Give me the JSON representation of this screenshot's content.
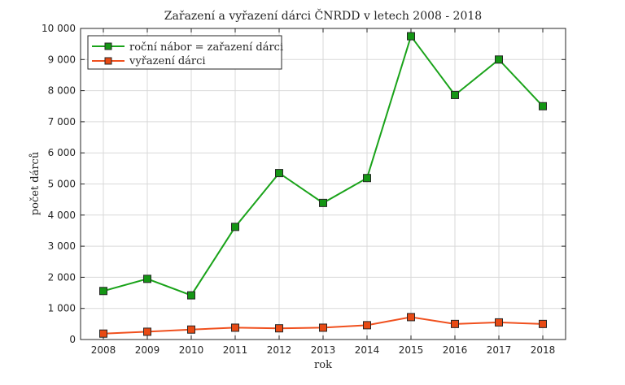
{
  "chart_data": {
    "type": "line",
    "title": "Zařazení a vyřazení dárci ČNRDD v letech 2008 - 2018",
    "xlabel": "rok",
    "ylabel": "počet dárců",
    "x": [
      2008,
      2009,
      2010,
      2011,
      2012,
      2013,
      2014,
      2015,
      2016,
      2017,
      2018
    ],
    "ylim": [
      0,
      10000
    ],
    "yticks": [
      0,
      1000,
      2000,
      3000,
      4000,
      5000,
      6000,
      7000,
      8000,
      9000,
      10000
    ],
    "ytick_labels": [
      "0",
      "1 000",
      "2 000",
      "3 000",
      "4 000",
      "5 000",
      "6 000",
      "7 000",
      "8 000",
      "9 000",
      "10 000"
    ],
    "xtick_labels": [
      "2008",
      "2009",
      "2010",
      "2011",
      "2012",
      "2013",
      "2014",
      "2015",
      "2016",
      "2017",
      "2018"
    ],
    "grid": true,
    "legend_position": "top-left",
    "series": [
      {
        "name": "roční nábor = zařazení dárci",
        "color": "#1aa31a",
        "marker_fill": "#149614",
        "values": [
          1560,
          1950,
          1420,
          3620,
          5350,
          4390,
          5190,
          9750,
          7860,
          9000,
          7500
        ]
      },
      {
        "name": "vyřazení dárci",
        "color": "#f0501e",
        "marker_fill": "#e84a14",
        "values": [
          190,
          250,
          320,
          380,
          360,
          380,
          460,
          720,
          500,
          550,
          500
        ]
      }
    ]
  }
}
